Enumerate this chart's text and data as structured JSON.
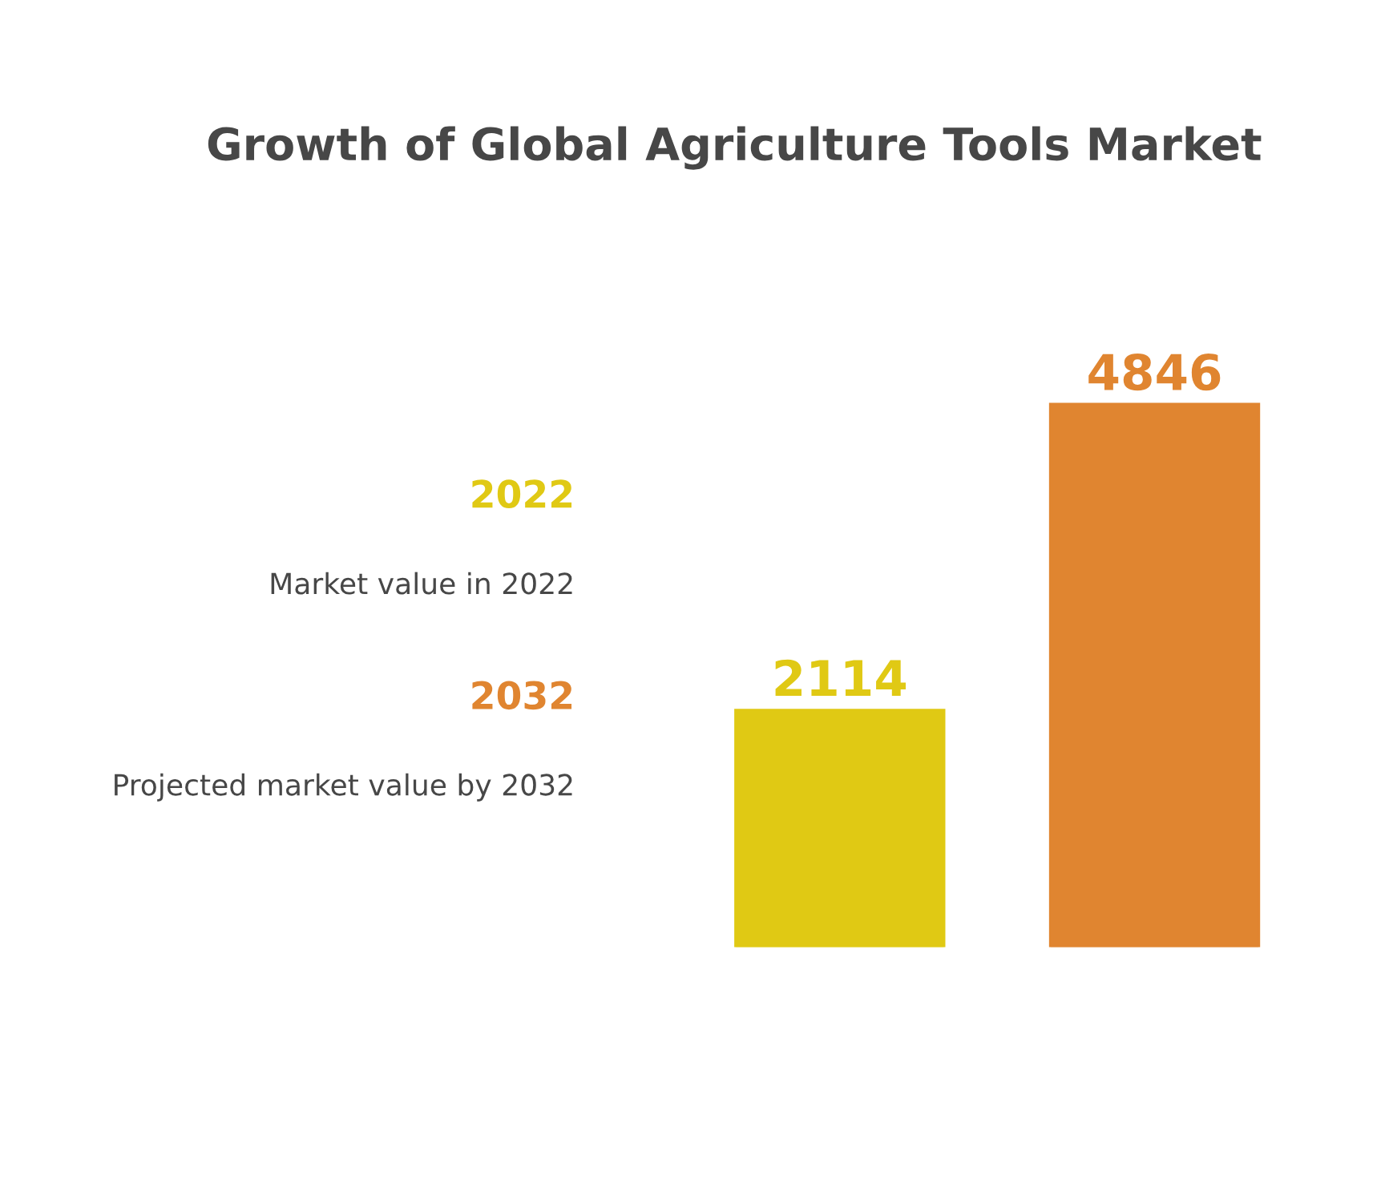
{
  "chart_data": {
    "type": "bar",
    "title": "Growth of Global Agriculture Tools Market",
    "categories": [
      null,
      null
    ],
    "values": [
      2114,
      4846
    ],
    "colors": [
      "#e0c914",
      "#e08530"
    ],
    "data_labels": true,
    "annotations": [
      "2022",
      "Market value in 2022",
      "2032",
      "Projected market value by 2032"
    ]
  }
}
